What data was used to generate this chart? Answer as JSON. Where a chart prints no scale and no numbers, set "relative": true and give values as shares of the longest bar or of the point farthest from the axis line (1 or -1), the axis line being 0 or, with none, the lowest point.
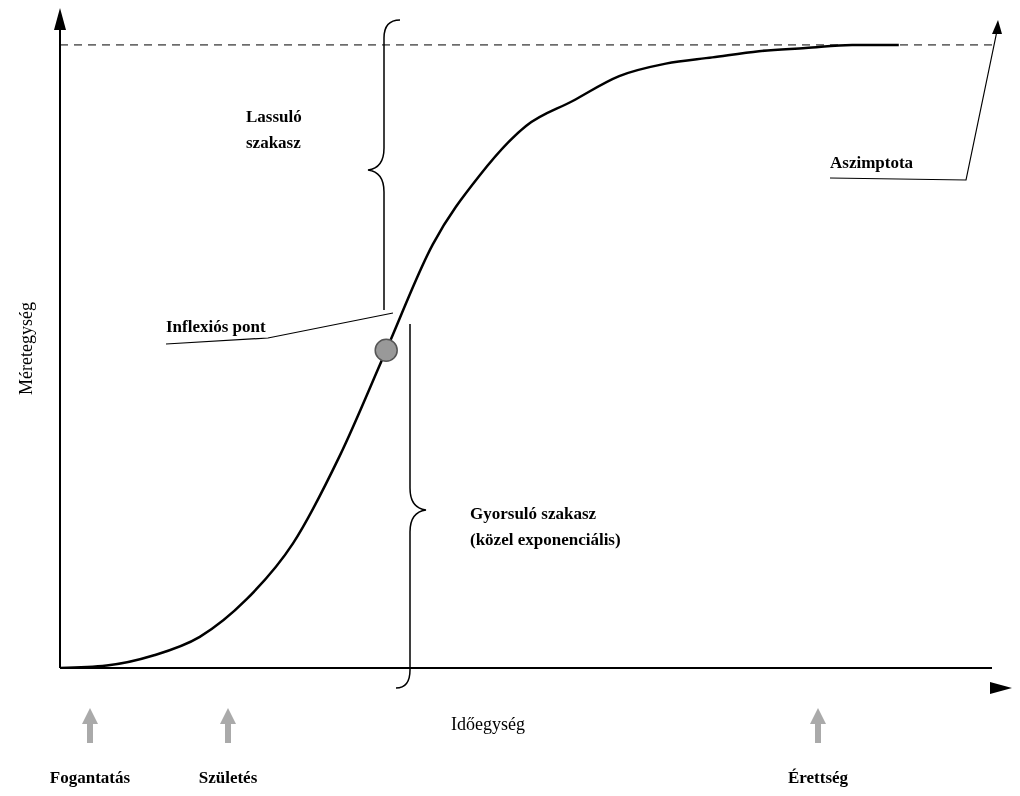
{
  "chart_data": {
    "type": "line",
    "relative": true,
    "xlabel": "Időegység",
    "ylabel": "Méretegység",
    "categories": [
      null,
      null,
      null,
      null,
      null,
      null,
      null,
      null,
      null,
      null,
      null,
      null,
      null,
      null,
      null,
      null,
      null,
      null,
      null,
      null,
      null
    ],
    "annotations": [
      "Lassuló szakasz",
      "Inflexiós pont",
      "Gyorsuló szakasz\n(közel exponenciális)",
      "Fogantatás",
      "Születés",
      "Érettség"
    ],
    "series": [
      {
        "color": "#000000",
        "values": [
          0,
          0.004,
          0.02,
          0.05,
          0.11,
          0.2,
          0.34,
          0.51,
          0.68,
          0.79,
          0.87,
          0.91,
          0.95,
          0.97,
          0.98,
          0.99,
          0.995,
          1,
          1,
          null,
          null
        ]
      }
    ],
    "ref_lines": [
      {
        "axis": "y",
        "value": 1,
        "label": "Aszimptota",
        "line_style": "dashed",
        "color": "#000000"
      }
    ]
  }
}
